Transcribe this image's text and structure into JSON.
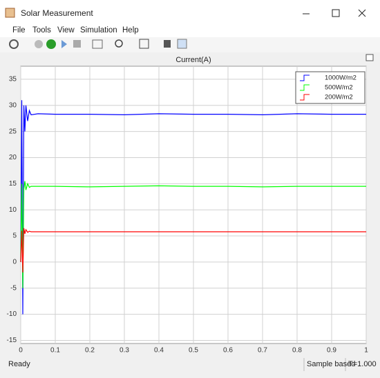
{
  "window": {
    "title": "Solar Measurement"
  },
  "menu": [
    "File",
    "Tools",
    "View",
    "Simulation",
    "Help"
  ],
  "chart_data": {
    "type": "line",
    "title": "Current(A)",
    "x": [
      0,
      0.003,
      0.006,
      0.009,
      0.012,
      0.015,
      0.02,
      0.025,
      0.03,
      0.05,
      0.1,
      0.2,
      0.3,
      0.4,
      0.5,
      0.6,
      0.7,
      0.8,
      0.9,
      1
    ],
    "series": [
      {
        "name": "1000W/m2",
        "color": "#0000ff",
        "values": [
          0,
          31,
          -10,
          30,
          25,
          30,
          27,
          29,
          28.2,
          28.4,
          28.3,
          28.3,
          28.2,
          28.4,
          28.3,
          28.3,
          28.2,
          28.4,
          28.3,
          28.3
        ]
      },
      {
        "name": "500W/m2",
        "color": "#00ff00",
        "values": [
          0,
          15,
          -5,
          14,
          15.5,
          13.8,
          15,
          14.3,
          14.5,
          14.5,
          14.5,
          14.4,
          14.5,
          14.6,
          14.5,
          14.5,
          14.4,
          14.5,
          14.5,
          14.5
        ]
      },
      {
        "name": "200W/m2",
        "color": "#ff0000",
        "values": [
          0,
          6,
          -2,
          6.5,
          5.4,
          6.2,
          5.7,
          5.9,
          5.8,
          5.8,
          5.8,
          5.8,
          5.8,
          5.8,
          5.8,
          5.8,
          5.8,
          5.8,
          5.8,
          5.8
        ]
      }
    ],
    "xlim": [
      0,
      1
    ],
    "xticks": [
      0,
      0.1,
      0.2,
      0.3,
      0.4,
      0.5,
      0.6,
      0.7,
      0.8,
      0.9,
      1
    ],
    "ylim": [
      -15.6,
      37.5
    ],
    "yticks": [
      -15,
      -10,
      -5,
      0,
      5,
      10,
      15,
      20,
      25,
      30,
      35
    ],
    "grid": true,
    "legend": "upper right"
  },
  "status": {
    "left": "Ready",
    "mode": "Sample based",
    "time": "T=1.000"
  }
}
